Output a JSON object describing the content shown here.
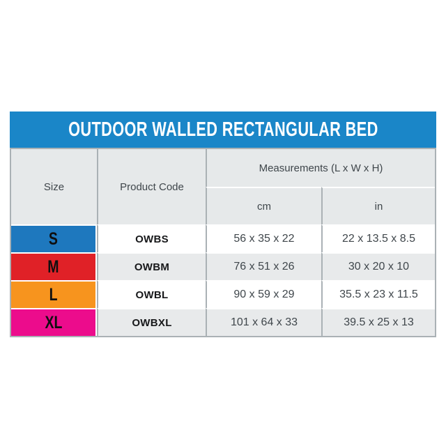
{
  "chart_data": {
    "type": "table",
    "title": "OUTDOOR WALLED RECTANGULAR BED",
    "column_headers": {
      "size": "Size",
      "product_code": "Product Code",
      "measurements_group": "Measurements (L x W x H)",
      "unit_cm": "cm",
      "unit_in": "in"
    },
    "rows": [
      {
        "size": "S",
        "size_color": "#1E78BE",
        "product_code": "OWBS",
        "cm": "56 x 35 x 22",
        "in": "22 x 13.5 x 8.5"
      },
      {
        "size": "M",
        "size_color": "#E02127",
        "product_code": "OWBM",
        "cm": "76 x 51 x 26",
        "in": "30 x 20 x 10"
      },
      {
        "size": "L",
        "size_color": "#F7941E",
        "product_code": "OWBL",
        "cm": "90 x 59 x 29",
        "in": "35.5 x 23 x 11.5"
      },
      {
        "size": "XL",
        "size_color": "#EC0C8C",
        "product_code": "OWBXL",
        "cm": "101 x 64 x 33",
        "in": "39.5 x 25 x 13"
      }
    ],
    "colors": {
      "title_bar_bg": "#1A86C8",
      "title_text": "#FFFFFF",
      "header_cell_bg": "#E6E9EA",
      "row_bg": "#FFFFFF",
      "row_alt_bg": "#E8EAEB",
      "grid_border": "#AAB1B5",
      "header_text": "#3F464B",
      "value_text": "#3F464B",
      "code_text": "#17181A",
      "size_text": "#0F0F10"
    }
  }
}
